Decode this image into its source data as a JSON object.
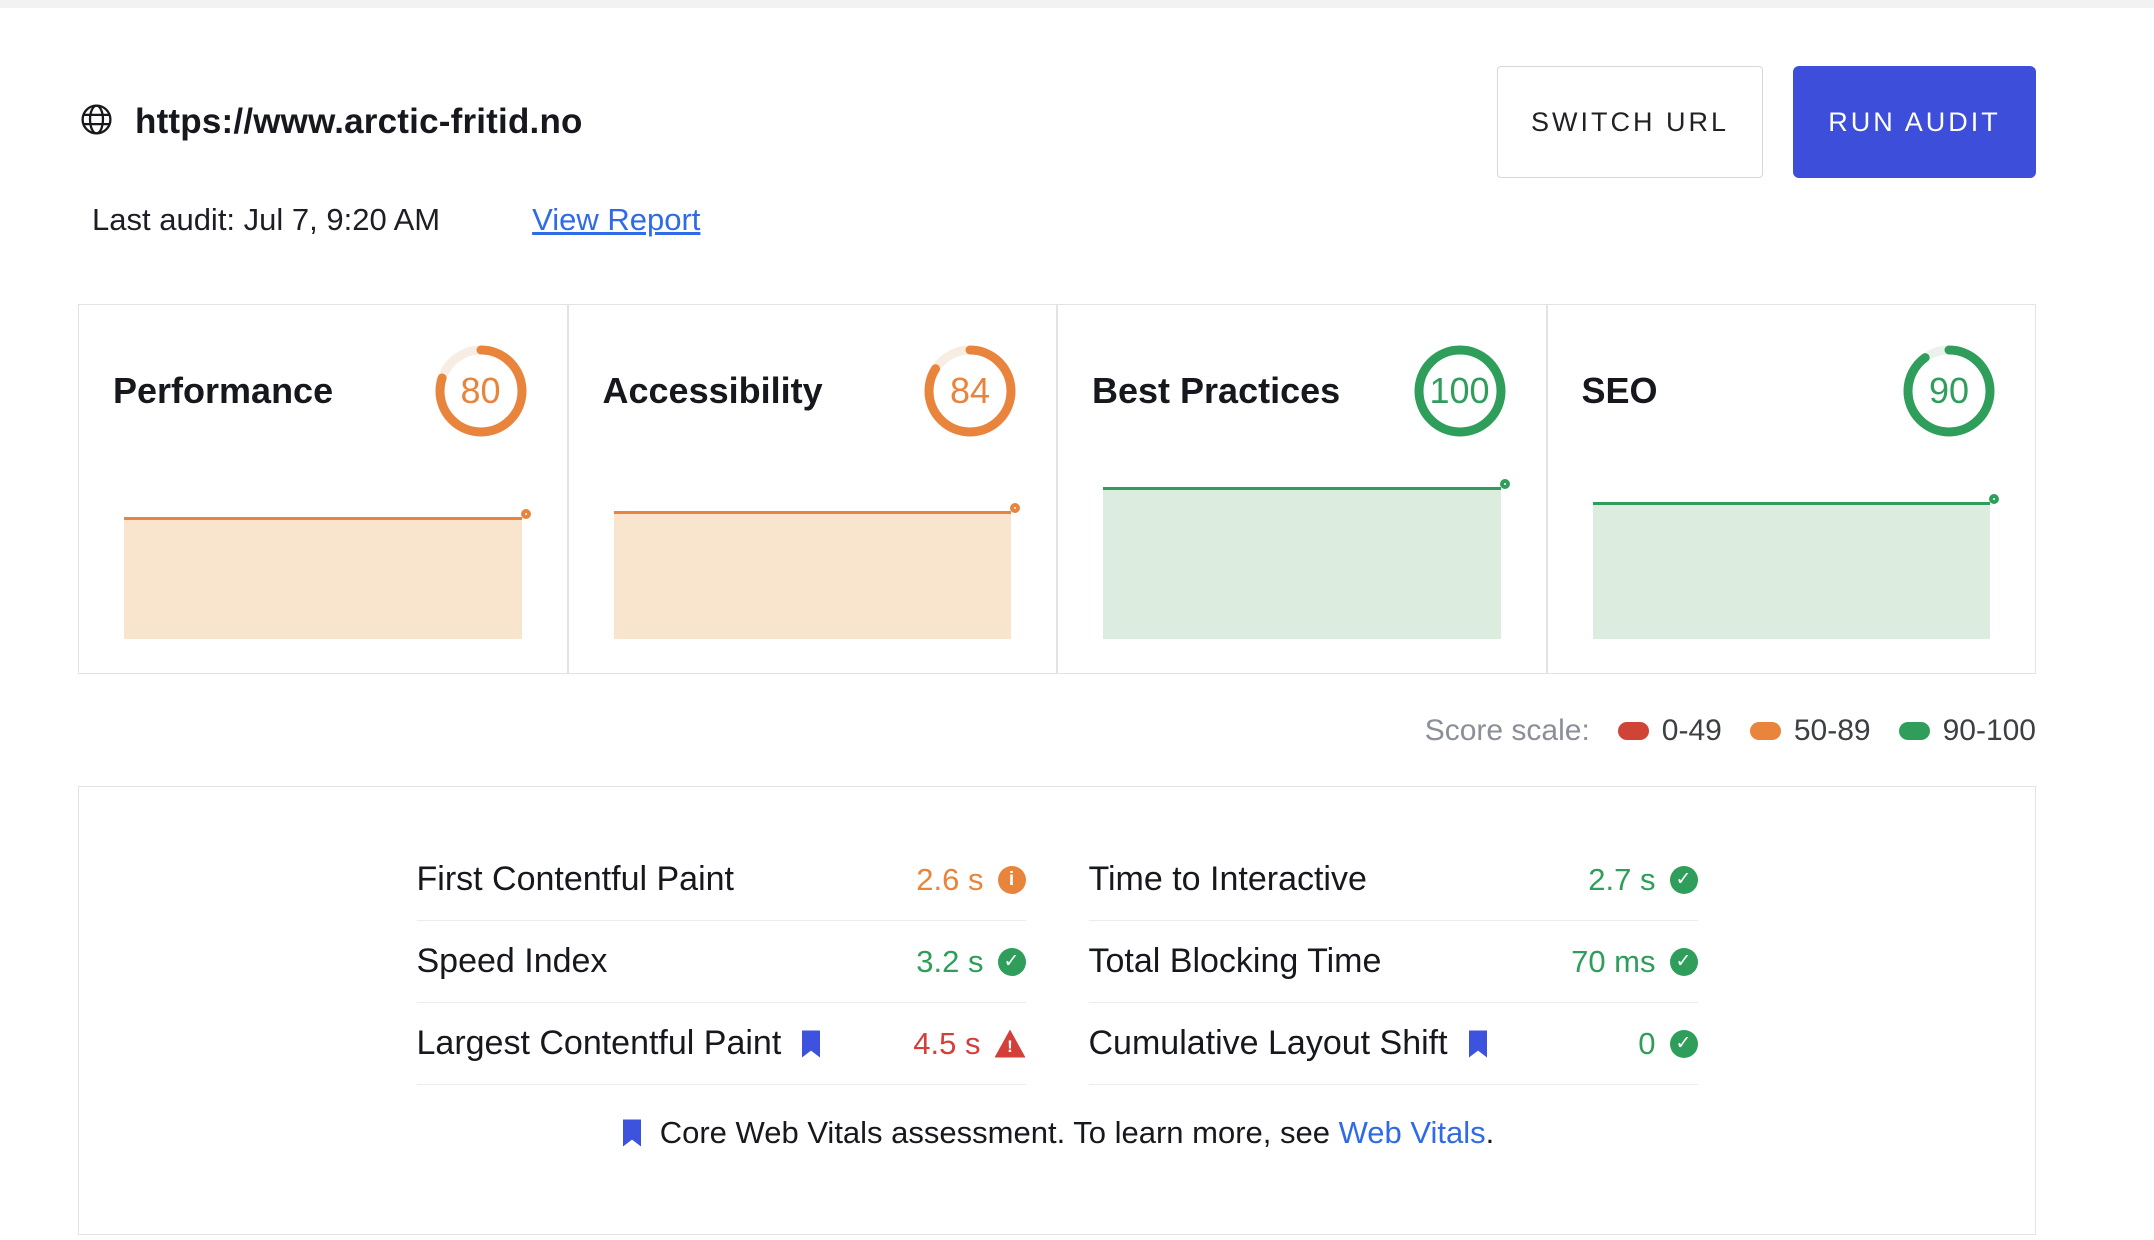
{
  "header": {
    "url": "https://www.arctic-fritid.no",
    "switch_url_label": "SWITCH URL",
    "run_audit_label": "RUN AUDIT",
    "last_audit": "Last audit: Jul 7, 9:20 AM",
    "view_report": "View Report"
  },
  "colors": {
    "orange": "#e8843c",
    "orange_fill": "#f9e4cd",
    "orange_track": "#f7ede2",
    "green": "#2f9e5b",
    "green_fill": "#dcecdf",
    "green_track": "#e9f3ec",
    "red": "#d43f3a",
    "accent_blue": "#3d4eda",
    "link_blue": "#2f6be6",
    "bookmark_blue": "#3d53de"
  },
  "score_cards": [
    {
      "label": "Performance",
      "score": 80,
      "status": "warning",
      "trend": [
        80,
        80
      ]
    },
    {
      "label": "Accessibility",
      "score": 84,
      "status": "warning",
      "trend": [
        84,
        84
      ]
    },
    {
      "label": "Best Practices",
      "score": 100,
      "status": "good",
      "trend": [
        100,
        100
      ]
    },
    {
      "label": "SEO",
      "score": 90,
      "status": "good",
      "trend": [
        90,
        90
      ]
    }
  ],
  "score_scale": {
    "label": "Score scale:",
    "ranges": [
      {
        "label": "0-49",
        "color": "#d04437"
      },
      {
        "label": "50-89",
        "color": "#e8843c"
      },
      {
        "label": "90-100",
        "color": "#2f9e5b"
      }
    ]
  },
  "metrics": {
    "left": [
      {
        "label": "First Contentful Paint",
        "value": "2.6 s",
        "status": "warning",
        "bookmark": false
      },
      {
        "label": "Speed Index",
        "value": "3.2 s",
        "status": "good",
        "bookmark": false
      },
      {
        "label": "Largest Contentful Paint",
        "value": "4.5 s",
        "status": "error",
        "bookmark": true
      }
    ],
    "right": [
      {
        "label": "Time to Interactive",
        "value": "2.7 s",
        "status": "good",
        "bookmark": false
      },
      {
        "label": "Total Blocking Time",
        "value": "70 ms",
        "status": "good",
        "bookmark": false
      },
      {
        "label": "Cumulative Layout Shift",
        "value": "0",
        "status": "good",
        "bookmark": true
      }
    ],
    "footer": {
      "text": "Core Web Vitals assessment. To learn more, see ",
      "link_label": "Web Vitals",
      "suffix": "."
    }
  },
  "icons": {
    "good": {
      "name": "check-circle-icon",
      "glyph": "✓"
    },
    "warning": {
      "name": "info-circle-icon",
      "glyph": "i"
    },
    "error": {
      "name": "warning-triangle-icon",
      "glyph": "!"
    }
  }
}
